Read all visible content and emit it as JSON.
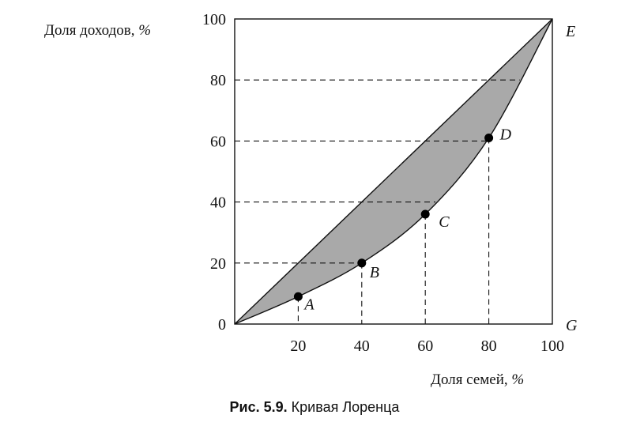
{
  "chart_data": {
    "type": "line",
    "title": "",
    "xlabel": "Доля семей, %",
    "ylabel": "Доля доходов, %",
    "xlabel_text": "Доля семей, ",
    "ylabel_text": "Доля доходов, ",
    "unit_symbol": "%",
    "xlim": [
      0,
      100
    ],
    "ylim": [
      0,
      100
    ],
    "x_ticks": [
      "20",
      "40",
      "60",
      "80",
      "100"
    ],
    "y_ticks": [
      "0",
      "20",
      "40",
      "60",
      "80",
      "100"
    ],
    "series": [
      {
        "role": "equality-line",
        "x": [
          0,
          100
        ],
        "y": [
          0,
          100
        ]
      },
      {
        "role": "lorenz-curve",
        "x": [
          0,
          20,
          40,
          60,
          80,
          100
        ],
        "y": [
          0,
          9,
          20,
          36,
          61,
          100
        ]
      }
    ],
    "points": [
      {
        "label": "A",
        "x": 20,
        "y": 9
      },
      {
        "label": "B",
        "x": 40,
        "y": 20
      },
      {
        "label": "C",
        "x": 60,
        "y": 36
      },
      {
        "label": "D",
        "x": 80,
        "y": 61
      }
    ],
    "corner_labels": {
      "top_right": "E",
      "bottom_right": "G"
    },
    "shaded_area_color": "#a9a9a9",
    "line_color": "#111111",
    "grid": false
  },
  "caption": {
    "prefix": "Рис. 5.9.",
    "text": " Кривая Лоренца"
  }
}
